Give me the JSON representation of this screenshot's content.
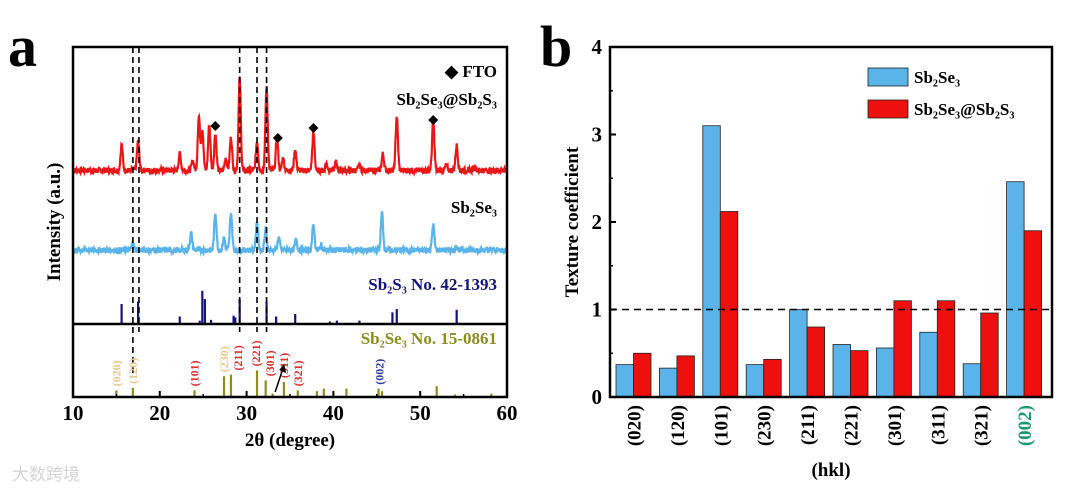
{
  "watermark": "大数跨境",
  "chart_data": [
    {
      "panel": "a",
      "type": "line",
      "xlabel": "2θ (degree)",
      "ylabel": "Intensity (a.u.)",
      "xlim": [
        10,
        60
      ],
      "xticks": [
        "10",
        "20",
        "30",
        "40",
        "50",
        "60"
      ],
      "dashed_lines_x": [
        16.9,
        17.6,
        29.2,
        31.2,
        32.3
      ],
      "fto_label": "◆ FTO",
      "fto_markers_x": [
        26.4,
        33.6,
        37.7,
        51.5
      ],
      "series": [
        {
          "name": "Sb₂Se₃@Sb₂S₃",
          "color": "#e81818",
          "offset": 2.73,
          "peaks": [
            [
              15.6,
              0.3
            ],
            [
              17.5,
              0.35
            ],
            [
              22.3,
              0.2
            ],
            [
              23.8,
              0.12
            ],
            [
              24.5,
              0.65
            ],
            [
              24.9,
              0.5
            ],
            [
              25.7,
              0.55
            ],
            [
              26.4,
              0.45
            ],
            [
              27.6,
              0.15
            ],
            [
              28.2,
              0.4
            ],
            [
              29.2,
              1.1
            ],
            [
              31.2,
              0.35
            ],
            [
              32.3,
              1.0
            ],
            [
              33.5,
              0.4
            ],
            [
              34.2,
              0.15
            ],
            [
              35.6,
              0.25
            ],
            [
              37.7,
              0.45
            ],
            [
              39.2,
              0.08
            ],
            [
              40.3,
              0.1
            ],
            [
              43.0,
              0.06
            ],
            [
              45.7,
              0.2
            ],
            [
              47.3,
              0.65
            ],
            [
              51.5,
              0.6
            ],
            [
              53.0,
              0.06
            ],
            [
              54.2,
              0.3
            ],
            [
              56.3,
              0.05
            ]
          ]
        },
        {
          "name": "Sb₂Se₃",
          "color": "#5ab4ea",
          "offset": 1.77,
          "peaks": [
            [
              16.9,
              0.08
            ],
            [
              23.6,
              0.2
            ],
            [
              26.4,
              0.45
            ],
            [
              27.4,
              0.15
            ],
            [
              28.2,
              0.45
            ],
            [
              31.2,
              0.35
            ],
            [
              32.2,
              0.25
            ],
            [
              33.7,
              0.15
            ],
            [
              35.7,
              0.12
            ],
            [
              37.7,
              0.3
            ],
            [
              38.6,
              0.06
            ],
            [
              45.6,
              0.45
            ],
            [
              51.5,
              0.3
            ],
            [
              54.2,
              0.05
            ]
          ]
        },
        {
          "name": "Sb₂S₃ No. 42-1393",
          "color": "#14147a",
          "offset": 0.88,
          "type": "stick",
          "peaks": [
            [
              15.6,
              0.24
            ],
            [
              17.5,
              0.27
            ],
            [
              22.3,
              0.09
            ],
            [
              24.6,
              0.04
            ],
            [
              24.9,
              0.4
            ],
            [
              25.2,
              0.3
            ],
            [
              25.9,
              0.05
            ],
            [
              28.5,
              0.1
            ],
            [
              28.7,
              0.08
            ],
            [
              29.2,
              0.3
            ],
            [
              32.3,
              0.27
            ],
            [
              33.4,
              0.09
            ],
            [
              35.6,
              0.12
            ],
            [
              39.6,
              0.03
            ],
            [
              40.4,
              0.04
            ],
            [
              43.0,
              0.04
            ],
            [
              46.8,
              0.14
            ],
            [
              47.3,
              0.18
            ],
            [
              54.2,
              0.17
            ]
          ]
        },
        {
          "name": "Sb₂Se₃ No. 15-0861",
          "color": "#8c8c20",
          "offset": 0,
          "type": "stick",
          "peaks": [
            [
              15.0,
              0.08
            ],
            [
              16.9,
              0.11
            ],
            [
              24.0,
              0.08
            ],
            [
              27.4,
              0.25
            ],
            [
              28.2,
              0.27
            ],
            [
              31.2,
              0.32
            ],
            [
              32.2,
              0.2
            ],
            [
              33.0,
              0.04
            ],
            [
              34.3,
              0.18
            ],
            [
              35.9,
              0.08
            ],
            [
              38.1,
              0.07
            ],
            [
              38.9,
              0.1
            ],
            [
              41.5,
              0.1
            ],
            [
              45.2,
              0.1
            ],
            [
              45.6,
              0.07
            ],
            [
              51.9,
              0.13
            ],
            [
              54.0,
              0.03
            ],
            [
              58.2,
              0.04
            ]
          ]
        }
      ],
      "hkl_labels": [
        {
          "text": "(020)",
          "x": 15.0,
          "color": "#e9c98a"
        },
        {
          "text": "(120)",
          "x": 16.9,
          "color": "#e9c98a"
        },
        {
          "text": "(101)",
          "x": 24.0,
          "color": "#d83232"
        },
        {
          "text": "(230)",
          "x": 27.4,
          "color": "#e9c98a"
        },
        {
          "text": "(211)",
          "x": 28.5,
          "color": "#d83232"
        },
        {
          "text": "(221)",
          "x": 31.1,
          "color": "#d83232"
        },
        {
          "text": "(301)",
          "x": 32.3,
          "color": "#d83232"
        },
        {
          "text": "(311)",
          "x": 34.3,
          "color": "#d83232"
        },
        {
          "text": "(321)",
          "x": 35.6,
          "color": "#d83232"
        },
        {
          "text": "(002)",
          "x": 45.3,
          "color": "#2c3ca0"
        }
      ]
    },
    {
      "panel": "b",
      "type": "bar",
      "xlabel": "(hkl)",
      "ylabel": "Texture coefficient",
      "ylim": [
        0,
        4
      ],
      "yticks": [
        "0",
        "1",
        "2",
        "3",
        "4"
      ],
      "reference_line_y": 1,
      "categories": [
        "(020)",
        "(120)",
        "(101)",
        "(230)",
        "(211)",
        "(221)",
        "(301)",
        "(311)",
        "(321)",
        "(002)"
      ],
      "category_colors": [
        "#000000",
        "#000000",
        "#000000",
        "#000000",
        "#000000",
        "#000000",
        "#000000",
        "#000000",
        "#000000",
        "#1a9a6a"
      ],
      "legend_position": "top-right",
      "series": [
        {
          "name": "Sb₂Se₃",
          "color": "#5ab4ea",
          "values": [
            0.37,
            0.33,
            3.1,
            0.37,
            1.0,
            0.6,
            0.56,
            0.74,
            0.38,
            2.46
          ]
        },
        {
          "name": "Sb₂Se₃@Sb₂S₃",
          "color": "#ee0f0f",
          "values": [
            0.5,
            0.47,
            2.12,
            0.43,
            0.8,
            0.53,
            1.1,
            1.1,
            0.96,
            1.9
          ]
        }
      ]
    }
  ],
  "labels": {
    "panel_a": "a",
    "panel_b": "b"
  }
}
